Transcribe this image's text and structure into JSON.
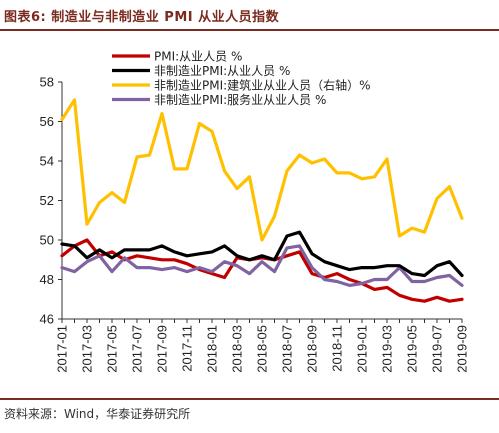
{
  "figure": {
    "title": "图表6:  制造业与非制造业 PMI 从业人员指数",
    "source": "资料来源：Wind，华泰证券研究所"
  },
  "chart_data": {
    "type": "line",
    "title": "制造业与非制造业 PMI 从业人员指数",
    "ylim": [
      46,
      58
    ],
    "yticks": [
      46,
      48,
      50,
      52,
      54,
      56,
      58
    ],
    "grid": false,
    "legend_position": "top",
    "x": [
      "2017-01",
      "2017-02",
      "2017-03",
      "2017-04",
      "2017-05",
      "2017-06",
      "2017-07",
      "2017-08",
      "2017-09",
      "2017-10",
      "2017-11",
      "2017-12",
      "2018-01",
      "2018-02",
      "2018-03",
      "2018-04",
      "2018-05",
      "2018-06",
      "2018-07",
      "2018-08",
      "2018-09",
      "2018-10",
      "2018-11",
      "2018-12",
      "2019-01",
      "2019-02",
      "2019-03",
      "2019-04",
      "2019-05",
      "2019-06",
      "2019-07",
      "2019-08",
      "2019-09"
    ],
    "xtick_labels": [
      "2017-01",
      "2017-03",
      "2017-05",
      "2017-07",
      "2017-09",
      "2017-11",
      "2018-01",
      "2018-03",
      "2018-05",
      "2018-07",
      "2018-09",
      "2018-11",
      "2019-01",
      "2019-03",
      "2019-05",
      "2019-07",
      "2019-09"
    ],
    "series": [
      {
        "name": "PMI:从业人员 %",
        "color": "#c00000",
        "values": [
          49.2,
          49.7,
          50.0,
          49.2,
          49.4,
          49.0,
          49.2,
          49.1,
          49.0,
          49.0,
          48.8,
          48.5,
          48.3,
          48.1,
          49.1,
          49.0,
          49.1,
          49.0,
          49.2,
          49.4,
          48.3,
          48.1,
          48.3,
          48.0,
          47.8,
          47.5,
          47.6,
          47.2,
          47.0,
          46.9,
          47.1,
          46.9,
          47.0
        ]
      },
      {
        "name": "非制造业PMI:从业人员 %",
        "color": "#000000",
        "values": [
          49.8,
          49.7,
          49.1,
          49.5,
          49.1,
          49.5,
          49.5,
          49.5,
          49.7,
          49.4,
          49.2,
          49.3,
          49.4,
          49.7,
          49.2,
          49.0,
          49.2,
          49.0,
          50.2,
          50.4,
          49.3,
          48.9,
          48.7,
          48.5,
          48.6,
          48.6,
          48.7,
          48.7,
          48.3,
          48.2,
          48.7,
          48.9,
          48.2
        ]
      },
      {
        "name": "非制造业PMI:建筑业从业人员（右轴）%",
        "color": "#ffc000",
        "values": [
          56.1,
          57.1,
          50.8,
          51.9,
          52.4,
          51.9,
          54.2,
          54.3,
          56.4,
          53.6,
          53.6,
          55.9,
          55.5,
          53.5,
          52.6,
          53.2,
          50.0,
          51.2,
          53.5,
          54.3,
          53.9,
          54.1,
          53.4,
          53.4,
          53.1,
          53.2,
          54.1,
          50.2,
          50.6,
          50.4,
          52.1,
          52.7,
          51.1
        ]
      },
      {
        "name": "非制造业PMI:服务业从业人员 %",
        "color": "#8064a2",
        "values": [
          48.6,
          48.4,
          48.9,
          49.2,
          48.4,
          49.1,
          48.6,
          48.6,
          48.5,
          48.6,
          48.4,
          48.6,
          48.4,
          48.9,
          48.7,
          48.3,
          48.9,
          48.4,
          49.6,
          49.7,
          48.6,
          48.0,
          47.9,
          47.7,
          47.8,
          48.0,
          48.0,
          48.6,
          47.9,
          47.9,
          48.1,
          48.2,
          47.7
        ]
      }
    ]
  }
}
